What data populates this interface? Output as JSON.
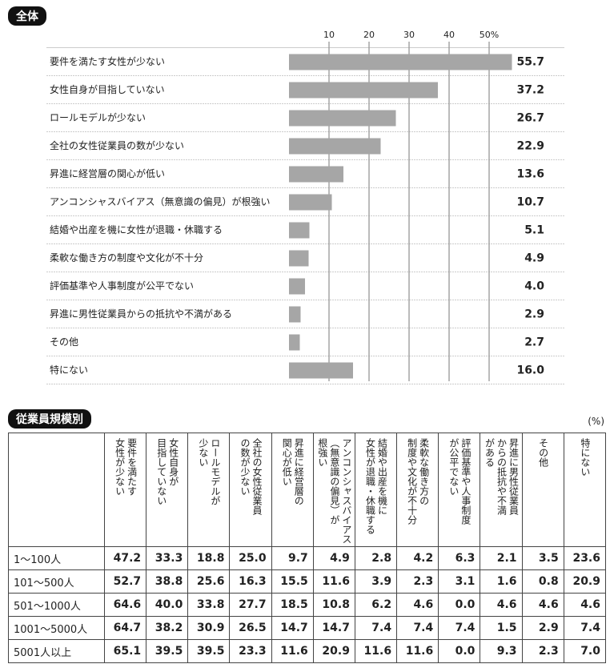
{
  "chart_data": {
    "type": "hbar",
    "title": "全体",
    "categories": [
      "要件を満たす女性が少ない",
      "女性自身が目指していない",
      "ロールモデルが少ない",
      "全社の女性従業員の数が少ない",
      "昇進に経営層の関心が低い",
      "アンコンシャスバイアス（無意識の偏見）が根強い",
      "結婚や出産を機に女性が退職・休職する",
      "柔軟な働き方の制度や文化が不十分",
      "評価基準や人事制度が公平でない",
      "昇進に男性従業員からの抵抗や不満がある",
      "その他",
      "特にない"
    ],
    "values": [
      55.7,
      37.2,
      26.7,
      22.9,
      13.6,
      10.7,
      5.1,
      4.9,
      4.0,
      2.9,
      2.7,
      16.0
    ],
    "value_labels": [
      "55.7",
      "37.2",
      "26.7",
      "22.9",
      "13.6",
      "10.7",
      "5.1",
      "4.9",
      "4.0",
      "2.9",
      "2.7",
      "16.0"
    ],
    "color": "#a6a6a6",
    "xlim": [
      0,
      60
    ],
    "xticks": [
      10,
      20,
      30,
      40,
      {
        "value": 50,
        "label": "50%"
      }
    ],
    "grid": true
  },
  "table": {
    "title": "従業員規模別",
    "unit": "(%)",
    "columns": [
      [
        "要件を満たす",
        "女性が少ない"
      ],
      [
        "女性自身が",
        "目指していない"
      ],
      [
        "ロールモデルが",
        "少ない"
      ],
      [
        "全社の女性従業員",
        "の数が少ない"
      ],
      [
        "昇進に経営層の",
        "関心が低い"
      ],
      [
        "アンコンシャスバイアス",
        "（無意識の偏見）が",
        "根強い"
      ],
      [
        "結婚や出産を機に",
        "女性が退職・休職する"
      ],
      [
        "柔軟な働き方の",
        "制度や文化が不十分"
      ],
      [
        "評価基準や人事制度",
        "が公平でない"
      ],
      [
        "昇進に男性従業員",
        "からの抵抗や不満",
        "がある"
      ],
      [
        "その他"
      ],
      [
        "特にない"
      ]
    ],
    "rows": [
      [
        "1～100人",
        "47.2",
        "33.3",
        "18.8",
        "25.0",
        "9.7",
        "4.9",
        "2.8",
        "4.2",
        "6.3",
        "2.1",
        "3.5",
        "23.6"
      ],
      [
        "101～500人",
        "52.7",
        "38.8",
        "25.6",
        "16.3",
        "15.5",
        "11.6",
        "3.9",
        "2.3",
        "3.1",
        "1.6",
        "0.8",
        "20.9"
      ],
      [
        "501～1000人",
        "64.6",
        "40.0",
        "33.8",
        "27.7",
        "18.5",
        "10.8",
        "6.2",
        "4.6",
        "0.0",
        "4.6",
        "4.6",
        "4.6"
      ],
      [
        "1001～5000人",
        "64.7",
        "38.2",
        "30.9",
        "26.5",
        "14.7",
        "14.7",
        "7.4",
        "7.4",
        "7.4",
        "1.5",
        "2.9",
        "7.4"
      ],
      [
        "5001人以上",
        "65.1",
        "39.5",
        "39.5",
        "23.3",
        "11.6",
        "20.9",
        "11.6",
        "11.6",
        "0.0",
        "9.3",
        "2.3",
        "7.0"
      ]
    ]
  }
}
